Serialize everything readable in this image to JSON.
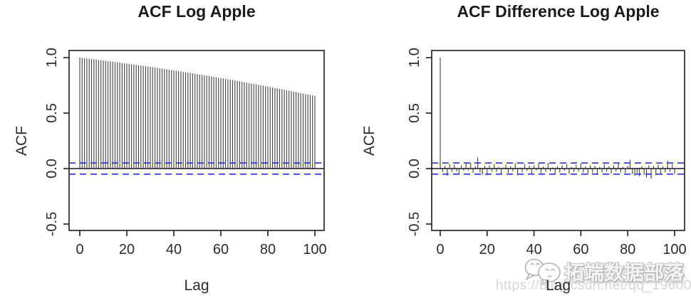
{
  "page": {
    "background": "#ffffff",
    "text_color": "#2b2b2b"
  },
  "watermark": {
    "logo_icon": "chat-bubbles-logo-icon",
    "brand_text": "拓端数据部落",
    "url_text": "https://blog.csdn.net/qq_19600291",
    "brand_color": "#b3b3b3",
    "url_color": "#d6d6d6"
  },
  "chart_data": [
    {
      "type": "bar",
      "title": "ACF Log Apple",
      "xlabel": "Lag",
      "ylabel": "ACF",
      "xlim": [
        -4,
        104
      ],
      "ylim": [
        -0.56,
        1.06
      ],
      "xticks": [
        0,
        20,
        40,
        60,
        80,
        100
      ],
      "yticks": [
        -0.5,
        0.0,
        0.5,
        1.0
      ],
      "ytick_labels": [
        "-0.5",
        "0.0",
        "0.5",
        "1.0"
      ],
      "grid": false,
      "legend": "none",
      "conf_bands": [
        0.05,
        -0.05
      ],
      "band_color": "#2a2aff",
      "bar_color": "#404040",
      "axis_color": "#1a1a1a",
      "lags": [
        0,
        1,
        2,
        3,
        4,
        5,
        6,
        7,
        8,
        9,
        10,
        11,
        12,
        13,
        14,
        15,
        16,
        17,
        18,
        19,
        20,
        21,
        22,
        23,
        24,
        25,
        26,
        27,
        28,
        29,
        30,
        31,
        32,
        33,
        34,
        35,
        36,
        37,
        38,
        39,
        40,
        41,
        42,
        43,
        44,
        45,
        46,
        47,
        48,
        49,
        50,
        51,
        52,
        53,
        54,
        55,
        56,
        57,
        58,
        59,
        60,
        61,
        62,
        63,
        64,
        65,
        66,
        67,
        68,
        69,
        70,
        71,
        72,
        73,
        74,
        75,
        76,
        77,
        78,
        79,
        80,
        81,
        82,
        83,
        84,
        85,
        86,
        87,
        88,
        89,
        90,
        91,
        92,
        93,
        94,
        95,
        96,
        97,
        98,
        99,
        100
      ],
      "values": [
        1.0,
        0.997,
        0.995,
        0.992,
        0.99,
        0.987,
        0.985,
        0.982,
        0.979,
        0.977,
        0.974,
        0.971,
        0.969,
        0.966,
        0.963,
        0.96,
        0.958,
        0.955,
        0.952,
        0.949,
        0.946,
        0.943,
        0.94,
        0.937,
        0.935,
        0.932,
        0.929,
        0.926,
        0.923,
        0.92,
        0.916,
        0.913,
        0.91,
        0.907,
        0.904,
        0.901,
        0.898,
        0.894,
        0.891,
        0.888,
        0.885,
        0.882,
        0.878,
        0.875,
        0.872,
        0.868,
        0.865,
        0.862,
        0.858,
        0.855,
        0.851,
        0.848,
        0.844,
        0.841,
        0.837,
        0.834,
        0.83,
        0.827,
        0.823,
        0.819,
        0.816,
        0.812,
        0.808,
        0.805,
        0.801,
        0.797,
        0.794,
        0.79,
        0.786,
        0.782,
        0.778,
        0.775,
        0.771,
        0.767,
        0.763,
        0.759,
        0.755,
        0.751,
        0.747,
        0.743,
        0.739,
        0.735,
        0.731,
        0.727,
        0.723,
        0.719,
        0.715,
        0.711,
        0.706,
        0.702,
        0.698,
        0.694,
        0.69,
        0.685,
        0.681,
        0.677,
        0.672,
        0.668,
        0.664,
        0.659,
        0.655
      ]
    },
    {
      "type": "bar",
      "title": "ACF Difference Log Apple",
      "xlabel": "Lag",
      "ylabel": "ACF",
      "xlim": [
        -4,
        104
      ],
      "ylim": [
        -0.56,
        1.06
      ],
      "xticks": [
        0,
        20,
        40,
        60,
        80,
        100
      ],
      "yticks": [
        -0.5,
        0.0,
        0.5,
        1.0
      ],
      "ytick_labels": [
        "-0.5",
        "0.0",
        "0.5",
        "1.0"
      ],
      "grid": false,
      "legend": "none",
      "conf_bands": [
        0.05,
        -0.05
      ],
      "band_color": "#2a2aff",
      "bar_color": "#404040",
      "axis_color": "#1a1a1a",
      "lags": [
        0,
        1,
        2,
        3,
        4,
        5,
        6,
        7,
        8,
        9,
        10,
        11,
        12,
        13,
        14,
        15,
        16,
        17,
        18,
        19,
        20,
        21,
        22,
        23,
        24,
        25,
        26,
        27,
        28,
        29,
        30,
        31,
        32,
        33,
        34,
        35,
        36,
        37,
        38,
        39,
        40,
        41,
        42,
        43,
        44,
        45,
        46,
        47,
        48,
        49,
        50,
        51,
        52,
        53,
        54,
        55,
        56,
        57,
        58,
        59,
        60,
        61,
        62,
        63,
        64,
        65,
        66,
        67,
        68,
        69,
        70,
        71,
        72,
        73,
        74,
        75,
        76,
        77,
        78,
        79,
        80,
        81,
        82,
        83,
        84,
        85,
        86,
        87,
        88,
        89,
        90,
        91,
        92,
        93,
        94,
        95,
        96,
        97,
        98,
        99,
        100
      ],
      "values": [
        1.0,
        -0.03,
        0.025,
        -0.065,
        0.04,
        -0.03,
        0.035,
        -0.025,
        -0.05,
        0.03,
        -0.02,
        0.045,
        -0.015,
        0.05,
        -0.04,
        0.02,
        0.1,
        -0.035,
        -0.055,
        0.025,
        -0.06,
        0.03,
        -0.025,
        0.04,
        -0.03,
        0.015,
        -0.05,
        0.01,
        0.035,
        -0.04,
        0.02,
        -0.025,
        0.05,
        -0.06,
        0.01,
        -0.03,
        0.04,
        -0.02,
        0.025,
        -0.05,
        0.03,
        -0.015,
        0.045,
        -0.04,
        0.02,
        -0.03,
        0.05,
        -0.025,
        0.01,
        -0.055,
        0.02,
        -0.035,
        0.03,
        -0.02,
        0.04,
        -0.045,
        0.015,
        -0.03,
        0.035,
        -0.025,
        0.045,
        -0.035,
        0.02,
        -0.05,
        0.03,
        -0.04,
        0.025,
        -0.055,
        0.015,
        -0.035,
        0.04,
        -0.03,
        0.02,
        -0.045,
        0.03,
        -0.025,
        0.05,
        -0.035,
        0.015,
        -0.04,
        0.025,
        0.08,
        -0.05,
        -0.065,
        -0.04,
        -0.07,
        0.02,
        -0.055,
        -0.08,
        0.03,
        -0.09,
        0.025,
        -0.06,
        0.035,
        -0.045,
        0.02,
        -0.035,
        0.07,
        -0.03,
        0.04,
        -0.05
      ]
    }
  ]
}
